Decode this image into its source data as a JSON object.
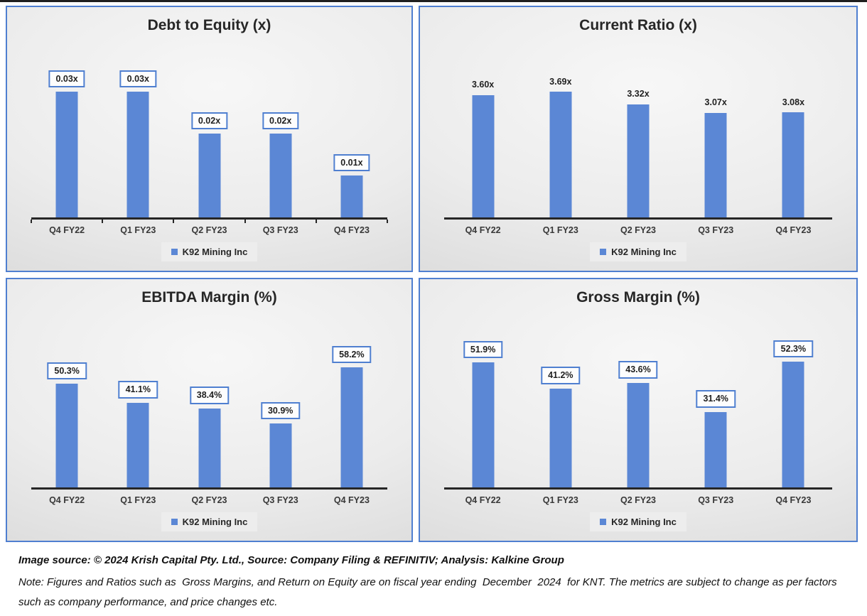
{
  "company": "K92 Mining Inc",
  "chart_data": [
    {
      "type": "bar",
      "title": "Debt to Equity (x)",
      "categories": [
        "Q4 FY22",
        "Q1 FY23",
        "Q2 FY23",
        "Q3 FY23",
        "Q4 FY23"
      ],
      "values": [
        0.03,
        0.03,
        0.02,
        0.02,
        0.01
      ],
      "data_labels": [
        "0.03x",
        "0.03x",
        "0.02x",
        "0.02x",
        "0.01x"
      ],
      "labels_boxed": true,
      "axis_ticks": true,
      "ylim": [
        0,
        0.035
      ],
      "grid": false,
      "legend": "K92 Mining Inc",
      "legend_position": "bottom"
    },
    {
      "type": "bar",
      "title": "Current Ratio (x)",
      "categories": [
        "Q4 FY22",
        "Q1 FY23",
        "Q2 FY23",
        "Q3 FY23",
        "Q4 FY23"
      ],
      "values": [
        3.6,
        3.69,
        3.32,
        3.07,
        3.08
      ],
      "data_labels": [
        "3.60x",
        "3.69x",
        "3.32x",
        "3.07x",
        "3.08x"
      ],
      "labels_boxed": false,
      "axis_ticks": false,
      "ylim": [
        0,
        4.3
      ],
      "grid": false,
      "legend": "K92 Mining Inc",
      "legend_position": "bottom"
    },
    {
      "type": "bar",
      "title": "EBITDA Margin (%)",
      "categories": [
        "Q4 FY22",
        "Q1 FY23",
        "Q2 FY23",
        "Q3 FY23",
        "Q4 FY23"
      ],
      "values": [
        50.3,
        41.1,
        38.4,
        30.9,
        58.2
      ],
      "data_labels": [
        "50.3%",
        "41.1%",
        "38.4%",
        "30.9%",
        "58.2%"
      ],
      "labels_boxed": true,
      "axis_ticks": false,
      "ylim": [
        0,
        70
      ],
      "grid": false,
      "legend": "K92 Mining Inc",
      "legend_position": "bottom"
    },
    {
      "type": "bar",
      "title": "Gross Margin (%)",
      "categories": [
        "Q4 FY22",
        "Q1 FY23",
        "Q2 FY23",
        "Q3 FY23",
        "Q4 FY23"
      ],
      "values": [
        51.9,
        41.2,
        43.6,
        31.4,
        52.3
      ],
      "data_labels": [
        "51.9%",
        "41.2%",
        "43.6%",
        "31.4%",
        "52.3%"
      ],
      "labels_boxed": true,
      "axis_ticks": false,
      "ylim": [
        0,
        60
      ],
      "grid": false,
      "legend": "K92 Mining Inc",
      "legend_position": "bottom"
    }
  ],
  "footer": {
    "source_line": "Image source: © 2024 Krish Capital Pty. Ltd., Source: Company Filing & REFINITIV; Analysis: Kalkine Group",
    "note_line": "Note: Figures and Ratios such as  Gross Margins, and Return on Equity are on fiscal year ending  December  2024  for KNT. The metrics are subject to change as per factors such as company performance, and price changes etc."
  },
  "colors": {
    "bar": "#5b87d5",
    "panel_border": "#4f7fd0",
    "label_box_border": "#4f7fd0",
    "axis": "#262626"
  }
}
